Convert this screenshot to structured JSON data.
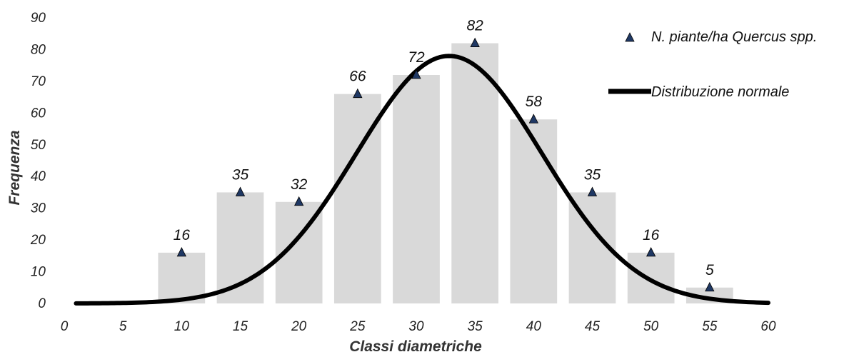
{
  "chart_data": {
    "type": "bar",
    "title": "",
    "xlabel": "Classi diametriche",
    "ylabel": "Frequenza",
    "xlim": [
      0,
      60
    ],
    "ylim": [
      0,
      90
    ],
    "x_ticks": [
      "0",
      "5",
      "10",
      "15",
      "20",
      "25",
      "30",
      "35",
      "40",
      "45",
      "50",
      "55",
      "60"
    ],
    "y_ticks": [
      "0",
      "10",
      "20",
      "30",
      "40",
      "50",
      "60",
      "70",
      "80",
      "90"
    ],
    "categories": [
      10,
      15,
      20,
      25,
      30,
      35,
      40,
      45,
      50,
      55
    ],
    "series": [
      {
        "name": "N. piante/ha Quercus spp.",
        "kind": "bar+marker",
        "values": [
          16,
          35,
          32,
          66,
          72,
          82,
          58,
          35,
          16,
          5
        ],
        "labels": [
          "16",
          "35",
          "32",
          "66",
          "72",
          "82",
          "58",
          "35",
          "16",
          "5"
        ]
      },
      {
        "name": "Distribuzione normale",
        "kind": "line",
        "mean": 32.8,
        "sd": 7.9,
        "peak": 78,
        "x_range": [
          1,
          60
        ]
      }
    ],
    "grid": false,
    "legend_position": "top-right",
    "colors": {
      "bar": "#d9d9d9",
      "marker": "#1f3864",
      "curve": "#000000"
    }
  }
}
